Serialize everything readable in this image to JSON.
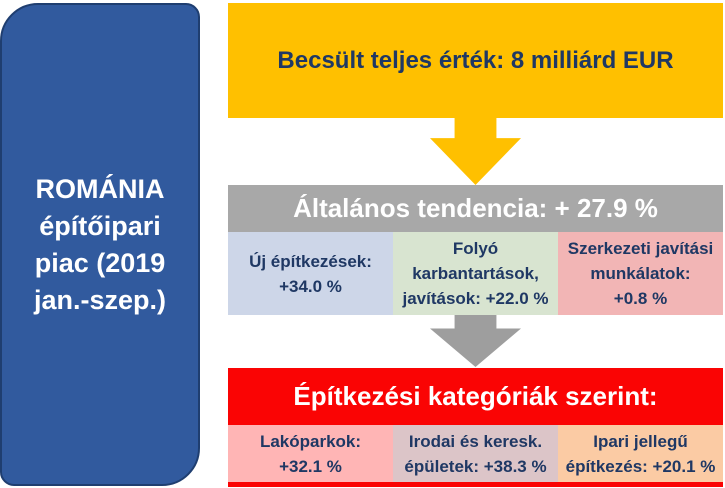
{
  "colors": {
    "panel_fill": "#315A9E",
    "panel_border": "#1F3E70",
    "value_banner_bg": "#FFC000",
    "trend_header_bg": "#A8A8A8",
    "category_bg": "#FA0404",
    "text_navy": "#1F3864",
    "text_white": "#FFFFFF",
    "arrow_yellow": "#FFC000",
    "arrow_gray": "#9E9E9E"
  },
  "panel": {
    "lines": [
      "ROMÁNIA",
      "építőipari",
      "piac (2019",
      "jan.-szep.)"
    ]
  },
  "top_banner": {
    "label": "Becsült teljes érték: 8 milliárd EUR"
  },
  "trend_section": {
    "header": "Általános tendencia: + 27.9 %",
    "cells": [
      {
        "bg": "#CDD6E8",
        "lines": [
          "Új építkezések:",
          "+34.0 %",
          ""
        ]
      },
      {
        "bg": "#D8E4D0",
        "lines": [
          "Folyó",
          "karbantartások,",
          "javítások: +22.0 %"
        ]
      },
      {
        "bg": "#F2B5B5",
        "lines": [
          "Szerkezeti javítási",
          "munkálatok:",
          "+0.8 %"
        ]
      }
    ]
  },
  "category_section": {
    "header": "Építkezési kategóriák szerint:",
    "cells": [
      {
        "bg": "#FFB5B5",
        "lines": [
          "Lakóparkok:",
          "+32.1 %"
        ]
      },
      {
        "bg": "#DCC5C8",
        "lines": [
          "Irodai és keresk.",
          "épületek: +38.3 %"
        ]
      },
      {
        "bg": "#FBCBA4",
        "lines": [
          "Ipari jellegű",
          "építkezés: +20.1 %"
        ]
      }
    ]
  }
}
